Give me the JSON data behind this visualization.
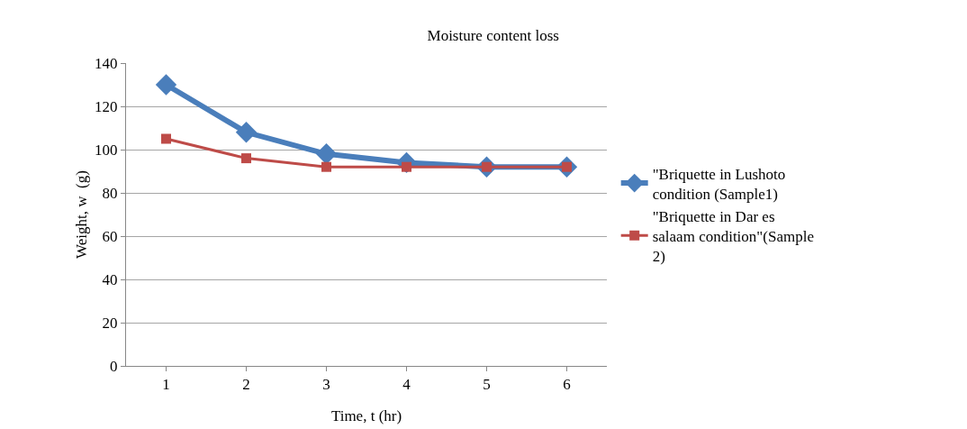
{
  "chart_data": {
    "type": "line",
    "title": "Moisture content loss",
    "xlabel": "Time, t (hr)",
    "ylabel": "Weight, w  (g)",
    "categories": [
      "1",
      "2",
      "3",
      "4",
      "5",
      "6"
    ],
    "series": [
      {
        "name": "\"Briquette in Lushoto condition (Sample1)",
        "color": "#4a7ebb",
        "marker": "diamond",
        "values": [
          130,
          108,
          98,
          94,
          92,
          92
        ]
      },
      {
        "name": "\"Briquette in Dar es salaam condition\"(Sample 2)",
        "color": "#be4b48",
        "marker": "square",
        "values": [
          105,
          96,
          92,
          92,
          92,
          92
        ]
      }
    ],
    "ylim": [
      0,
      140
    ],
    "yticks": [
      0,
      20,
      40,
      60,
      80,
      100,
      120,
      140
    ],
    "grid": "y",
    "legend": "right",
    "line_style": "solid"
  }
}
